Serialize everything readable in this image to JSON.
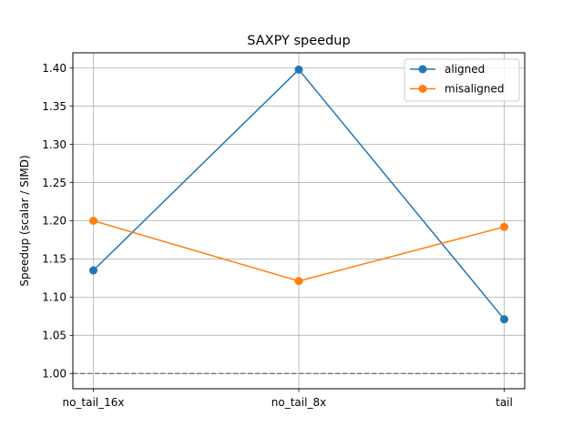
{
  "chart_data": {
    "type": "line",
    "title": "SAXPY speedup",
    "xlabel": "",
    "ylabel": "Speedup (scalar / SIMD)",
    "categories": [
      "no_tail_16x",
      "no_tail_8x",
      "tail"
    ],
    "ylim": [
      0.98,
      1.42
    ],
    "yticks": [
      1.0,
      1.05,
      1.1,
      1.15,
      1.2,
      1.25,
      1.3,
      1.35,
      1.4
    ],
    "ytick_labels": [
      "1.00",
      "1.05",
      "1.10",
      "1.15",
      "1.20",
      "1.25",
      "1.30",
      "1.35",
      "1.40"
    ],
    "grid": true,
    "legend": "top-right",
    "reference_line": {
      "y": 1.0,
      "style": "dashed",
      "color": "#808080"
    },
    "series": [
      {
        "name": "aligned",
        "color": "#1f77b4",
        "marker": "circle",
        "values": [
          1.135,
          1.398,
          1.071
        ]
      },
      {
        "name": "misaligned",
        "color": "#ff7f0e",
        "marker": "circle",
        "values": [
          1.2,
          1.121,
          1.192
        ]
      }
    ]
  }
}
